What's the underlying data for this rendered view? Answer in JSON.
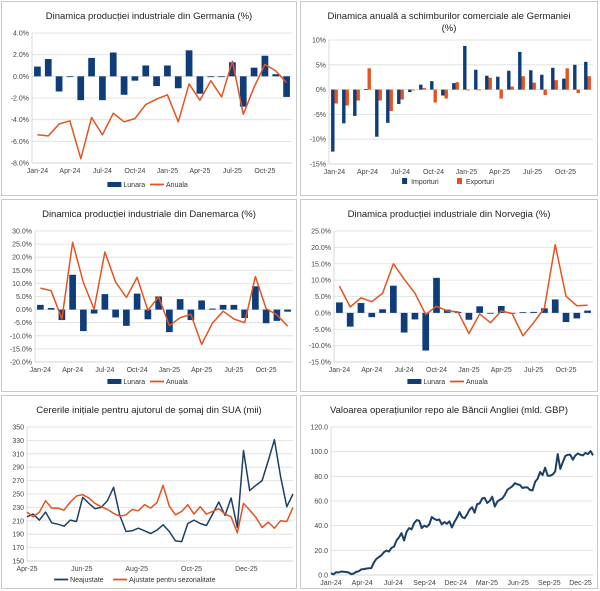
{
  "chart_data": [
    {
      "id": "de-ind",
      "type": "bar-line",
      "title": "Dinamica producției industriale din Germania (%)",
      "x": [
        "Jan-24",
        "Feb-24",
        "Mar-24",
        "Apr-24",
        "May-24",
        "Jun-24",
        "Jul-24",
        "Aug-24",
        "Sep-24",
        "Oct-24",
        "Nov-24",
        "Dec-24",
        "Jan-25",
        "Feb-25",
        "Mar-25",
        "Apr-25",
        "May-25",
        "Jun-25",
        "Jul-25",
        "Aug-25",
        "Sep-25",
        "Oct-25",
        "Nov-25",
        "Dec-25"
      ],
      "xticks": [
        "Jan-24",
        "Apr-24",
        "Jul-24",
        "Oct-24",
        "Jan-25",
        "Apr-25",
        "Jul-25",
        "Oct-25"
      ],
      "ylim": [
        -8,
        4
      ],
      "ystep": 2,
      "yformat": "pct1",
      "series": [
        {
          "name": "Lunara",
          "kind": "bar",
          "color": "#0e3d7a",
          "values": [
            0.9,
            1.6,
            -1.4,
            0.0,
            -2.2,
            1.7,
            -2.2,
            2.2,
            -1.7,
            -0.4,
            1.0,
            -0.9,
            1.0,
            -1.1,
            2.4,
            -1.6,
            0.0,
            0.0,
            1.3,
            -2.8,
            0.8,
            1.9,
            0.2,
            -1.9
          ]
        },
        {
          "name": "Anuala",
          "kind": "line",
          "color": "#e35420",
          "values": [
            -5.4,
            -5.5,
            -4.4,
            -4.1,
            -7.6,
            -3.8,
            -5.4,
            -3.4,
            -4.2,
            -3.9,
            -2.6,
            -2.1,
            -1.7,
            -4.2,
            -0.7,
            -2.2,
            -0.4,
            -1.9,
            1.4,
            -3.5,
            -1.0,
            1.1,
            0.5,
            -0.6
          ]
        }
      ],
      "legend": "bottom"
    },
    {
      "id": "de-trade",
      "type": "bar",
      "title": "Dinamica anuală a schimburilor comerciale ale Germaniei (%)",
      "x": [
        "Jan-24",
        "Feb-24",
        "Mar-24",
        "Apr-24",
        "May-24",
        "Jun-24",
        "Jul-24",
        "Aug-24",
        "Sep-24",
        "Oct-24",
        "Nov-24",
        "Dec-24",
        "Jan-25",
        "Feb-25",
        "Mar-25",
        "Apr-25",
        "May-25",
        "Jun-25",
        "Jul-25",
        "Aug-25",
        "Sep-25",
        "Oct-25",
        "Nov-25",
        "Dec-25"
      ],
      "xticks": [
        "Jan-24",
        "Apr-24",
        "Jul-24",
        "Oct-24",
        "Jan-25",
        "Apr-25",
        "Jul-25",
        "Oct-25"
      ],
      "ylim": [
        -15,
        10
      ],
      "ystep": 5,
      "yformat": "pct0",
      "series": [
        {
          "name": "Importuri",
          "kind": "bar",
          "color": "#0e3d7a",
          "values": [
            -12.5,
            -6.8,
            -5.3,
            0.1,
            -9.5,
            -6.7,
            -2.9,
            -0.5,
            1.0,
            1.7,
            -1.2,
            1.3,
            8.8,
            4.0,
            2.8,
            2.6,
            3.8,
            7.6,
            3.9,
            3.0,
            4.4,
            2.2,
            5.0,
            5.6
          ]
        },
        {
          "name": "Exporturi",
          "kind": "bar",
          "color": "#e35420",
          "values": [
            -2.8,
            -3.2,
            -2.2,
            4.3,
            -2.2,
            -4.3,
            -2.0,
            0.0,
            0.3,
            -2.6,
            -1.8,
            1.5,
            0.0,
            0.0,
            2.4,
            -1.8,
            0.6,
            2.7,
            1.4,
            -1.1,
            1.9,
            4.3,
            -0.7,
            2.7
          ]
        }
      ],
      "legend": "bottom"
    },
    {
      "id": "dk-ind",
      "type": "bar-line",
      "title": "Dinamica producției industriale din Danemarca (%)",
      "x": [
        "Jan-24",
        "Feb-24",
        "Mar-24",
        "Apr-24",
        "May-24",
        "Jun-24",
        "Jul-24",
        "Aug-24",
        "Sep-24",
        "Oct-24",
        "Nov-24",
        "Dec-24",
        "Jan-25",
        "Feb-25",
        "Mar-25",
        "Apr-25",
        "May-25",
        "Jun-25",
        "Jul-25",
        "Aug-25",
        "Sep-25",
        "Oct-25",
        "Nov-25",
        "Dec-25"
      ],
      "xticks": [
        "Jan-24",
        "Apr-24",
        "Jul-24",
        "Oct-24",
        "Jan-25",
        "Apr-25",
        "Jul-25",
        "Oct-25"
      ],
      "ylim": [
        -20,
        30
      ],
      "ystep": 5,
      "yformat": "pct1",
      "series": [
        {
          "name": "Lunara",
          "kind": "bar",
          "color": "#0e3d7a",
          "values": [
            1.8,
            0.6,
            -4.0,
            13.3,
            -8.2,
            -1.5,
            5.9,
            -3.0,
            -6.2,
            6.1,
            -3.7,
            5.0,
            -8.6,
            4.0,
            -4.0,
            3.5,
            0.4,
            1.8,
            1.8,
            -3.2,
            8.9,
            -5.2,
            -4.3,
            -0.8
          ]
        },
        {
          "name": "Anuala",
          "kind": "line",
          "color": "#e35420",
          "values": [
            8.2,
            7.2,
            -3.6,
            25.7,
            10.3,
            0.2,
            22.0,
            10.5,
            4.6,
            12.3,
            -0.3,
            4.9,
            -6.1,
            -3.1,
            -1.8,
            -13.3,
            -5.2,
            -0.6,
            -3.6,
            -5.0,
            12.6,
            0.4,
            -2.0,
            -6.3
          ]
        }
      ],
      "legend": "bottom"
    },
    {
      "id": "no-ind",
      "type": "bar-line",
      "title": "Dinamica producției industriale din Norvegia (%)",
      "x": [
        "Jan-24",
        "Feb-24",
        "Mar-24",
        "Apr-24",
        "May-24",
        "Jun-24",
        "Jul-24",
        "Aug-24",
        "Sep-24",
        "Oct-24",
        "Nov-24",
        "Dec-24",
        "Jan-25",
        "Feb-25",
        "Mar-25",
        "Apr-25",
        "May-25",
        "Jun-25",
        "Jul-25",
        "Aug-25",
        "Sep-25",
        "Oct-25",
        "Nov-25",
        "Dec-25"
      ],
      "xticks": [
        "Jan-24",
        "Apr-24",
        "Jul-24",
        "Oct-24",
        "Jan-25",
        "Apr-25",
        "Jul-25",
        "Oct-25"
      ],
      "ylim": [
        -15,
        25
      ],
      "ystep": 5,
      "yformat": "pct1",
      "series": [
        {
          "name": "Lunara",
          "kind": "bar",
          "color": "#0e3d7a",
          "values": [
            3.2,
            -4.2,
            3.0,
            -1.3,
            1.1,
            8.3,
            -6.0,
            -2.0,
            -11.5,
            10.7,
            1.0,
            0.3,
            -2.1,
            2.0,
            -0.1,
            2.1,
            -0.1,
            0.2,
            0.3,
            1.4,
            4.1,
            -2.8,
            -1.7,
            0.7
          ]
        },
        {
          "name": "Anuala",
          "kind": "line",
          "color": "#e35420",
          "values": [
            8.2,
            1.8,
            4.6,
            3.4,
            6.0,
            15.0,
            10.3,
            6.0,
            -0.5,
            2.0,
            0.6,
            0.3,
            -6.3,
            -0.3,
            -3.0,
            0.6,
            -0.2,
            -7.0,
            -3.0,
            1.5,
            20.8,
            5.1,
            2.2,
            2.3
          ]
        }
      ],
      "legend": "bottom"
    },
    {
      "id": "us-claims",
      "type": "line",
      "title": "Cererile inițiale pentru ajutorul de șomaj din SUA (mii)",
      "xticks": [
        "Apr-25",
        "Jun-25",
        "Aug-25",
        "Oct-25",
        "Dec-25"
      ],
      "ylim": [
        150,
        350
      ],
      "ystep": 20,
      "yformat": "int",
      "series": [
        {
          "name": "Neajustate",
          "kind": "line",
          "color": "#1c3f66",
          "values": [
            216,
            220,
            211,
            223,
            207,
            205,
            202,
            211,
            209,
            245,
            236,
            228,
            230,
            240,
            260,
            218,
            194,
            195,
            199,
            195,
            191,
            196,
            204,
            194,
            180,
            179,
            206,
            211,
            206,
            203,
            220,
            238,
            218,
            244,
            200,
            315,
            255,
            263,
            270,
            300,
            331,
            276,
            231,
            250
          ]
        },
        {
          "name": "Ajustate pentru sezonalitate",
          "kind": "line",
          "color": "#e35420",
          "values": [
            223,
            216,
            223,
            240,
            229,
            229,
            226,
            238,
            247,
            249,
            244,
            236,
            231,
            227,
            221,
            217,
            219,
            227,
            225,
            234,
            229,
            237,
            263,
            232,
            219,
            224,
            234,
            220,
            231,
            220,
            224,
            228,
            220,
            216,
            192,
            236,
            226,
            215,
            200,
            208,
            199,
            210,
            209,
            230
          ]
        }
      ],
      "legend": "bottom"
    },
    {
      "id": "uk-repo",
      "type": "line",
      "title": "Valoarea operațiunilor repo ale Băncii Angliei (mld. GBP)",
      "xticks": [
        "Jan-24",
        "Apr-24",
        "Jul-24",
        "Sep-24",
        "Dec-24",
        "Mar-25",
        "Jun-25",
        "Sep-25",
        "Dec-25"
      ],
      "ylim": [
        0,
        120
      ],
      "ystep": 20,
      "yformat": "dec1",
      "series": [
        {
          "name": "Repo",
          "kind": "line",
          "color": "#1c3f66",
          "values": [
            1.5,
            0.5,
            2.3,
            2.0,
            2.8,
            2.6,
            2.4,
            2.0,
            0.7,
            1.2,
            2.5,
            3.0,
            4.5,
            4.8,
            5.2,
            5.5,
            5.6,
            10.0,
            13.0,
            14.5,
            16.0,
            18.5,
            19.8,
            19.0,
            22.0,
            23.0,
            28.0,
            30.5,
            34.0,
            28.0,
            35.0,
            38.0,
            37.0,
            42.0,
            44.5,
            44.0,
            38.0,
            40.0,
            39.0,
            41.0,
            47.0,
            45.5,
            44.5,
            45.0,
            41.0,
            43.0,
            41.5,
            43.5,
            38.5,
            43.0,
            46.5,
            51.0,
            47.0,
            46.0,
            49.0,
            53.0,
            55.0,
            50.5,
            57.5,
            58.0,
            62.0,
            62.5,
            58.5,
            60.0,
            63.5,
            55.5,
            59.5,
            61.0,
            62.0,
            65.0,
            69.0,
            70.5,
            72.0,
            74.5,
            73.5,
            73.0,
            70.5,
            71.0,
            71.0,
            69.0,
            68.5,
            75.5,
            78.0,
            83.5,
            81.0,
            87.0,
            80.5,
            80.5,
            81.5,
            84.0,
            98.0,
            86.0,
            91.5,
            96.5,
            97.5,
            97.5,
            93.5,
            97.0,
            98.5,
            97.5,
            97.0,
            99.0,
            98.0,
            100.5,
            97.0
          ]
        }
      ],
      "legend": "none"
    }
  ]
}
